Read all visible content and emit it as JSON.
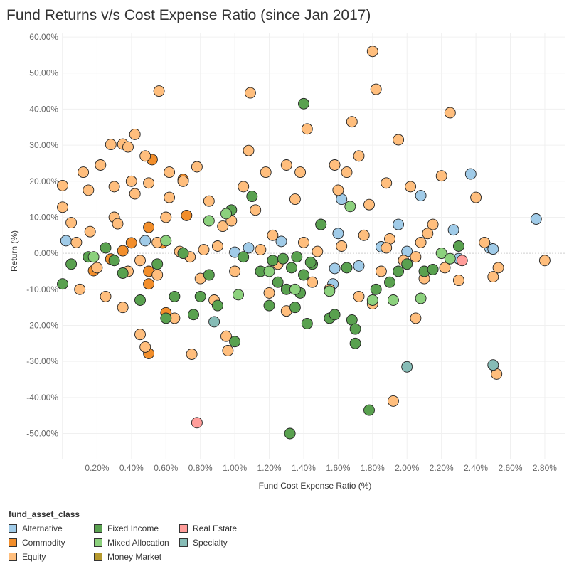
{
  "title": "Fund Returns v/s Cost Expense Ratio (since Jan 2017)",
  "chart_data": {
    "type": "scatter",
    "xlabel": "Fund Cost Expense Ratio (%)",
    "ylabel": "Return (%)",
    "xlim": [
      0.0,
      2.92
    ],
    "ylim": [
      -57,
      61
    ],
    "x_ticks": [
      0.2,
      0.4,
      0.6,
      0.8,
      1.0,
      1.2,
      1.4,
      1.6,
      1.8,
      2.0,
      2.2,
      2.4,
      2.6,
      2.8
    ],
    "x_tick_labels": [
      "0.20%",
      "0.40%",
      "0.60%",
      "0.80%",
      "1.00%",
      "1.20%",
      "1.40%",
      "1.60%",
      "1.80%",
      "2.00%",
      "2.20%",
      "2.40%",
      "2.60%",
      "2.80%"
    ],
    "y_ticks": [
      60,
      50,
      40,
      30,
      20,
      10,
      0,
      -10,
      -20,
      -30,
      -40,
      -50
    ],
    "y_tick_labels": [
      "60.00%",
      "50.00%",
      "40.00%",
      "30.00%",
      "20.00%",
      "10.00%",
      "0.00%",
      "-10.00%",
      "-20.00%",
      "-30.00%",
      "-40.00%",
      "-50.00%"
    ],
    "grid": true,
    "legend_title": "fund_asset_class",
    "legend_position": "bottom-left",
    "series": [
      {
        "name": "Alternative",
        "color": "#a0cbe8",
        "points": [
          [
            0.02,
            3.5
          ],
          [
            0.48,
            3.5
          ],
          [
            1.0,
            0.3
          ],
          [
            1.08,
            1.5
          ],
          [
            1.27,
            3.3
          ],
          [
            1.57,
            -8.5
          ],
          [
            1.58,
            -4.2
          ],
          [
            1.6,
            5.5
          ],
          [
            1.62,
            15.0
          ],
          [
            1.72,
            -3.5
          ],
          [
            1.85,
            1.8
          ],
          [
            1.95,
            8.0
          ],
          [
            2.0,
            0.5
          ],
          [
            2.08,
            16.0
          ],
          [
            2.27,
            6.5
          ],
          [
            2.37,
            22.0
          ],
          [
            2.3,
            -1.5
          ],
          [
            2.48,
            1.5
          ],
          [
            2.5,
            1.2
          ],
          [
            2.75,
            9.5
          ]
        ]
      },
      {
        "name": "Commodity",
        "color": "#f28e2b",
        "points": [
          [
            0.18,
            -4.8
          ],
          [
            0.28,
            -1.6
          ],
          [
            0.35,
            0.7
          ],
          [
            0.4,
            2.9
          ],
          [
            0.5,
            7.2
          ],
          [
            0.5,
            -27.8
          ],
          [
            0.52,
            26.0
          ],
          [
            0.5,
            -8.5
          ],
          [
            0.5,
            -5.0
          ],
          [
            0.6,
            -16.5
          ],
          [
            0.58,
            2.9
          ],
          [
            0.7,
            20.5
          ],
          [
            0.72,
            10.5
          ]
        ]
      },
      {
        "name": "Equity",
        "color": "#ffbe7d",
        "points": [
          [
            0.0,
            18.8
          ],
          [
            0.0,
            12.8
          ],
          [
            0.05,
            8.5
          ],
          [
            0.08,
            3.0
          ],
          [
            0.1,
            -10.0
          ],
          [
            0.12,
            22.5
          ],
          [
            0.15,
            17.5
          ],
          [
            0.16,
            6.0
          ],
          [
            0.2,
            -4.0
          ],
          [
            0.22,
            24.5
          ],
          [
            0.25,
            -12.0
          ],
          [
            0.28,
            30.2
          ],
          [
            0.3,
            18.5
          ],
          [
            0.3,
            10.0
          ],
          [
            0.32,
            8.2
          ],
          [
            0.35,
            -15.0
          ],
          [
            0.35,
            30.3
          ],
          [
            0.38,
            29.5
          ],
          [
            0.38,
            -5.0
          ],
          [
            0.4,
            20.0
          ],
          [
            0.42,
            33.0
          ],
          [
            0.42,
            16.5
          ],
          [
            0.45,
            -2.0
          ],
          [
            0.45,
            -22.5
          ],
          [
            0.48,
            -26.0
          ],
          [
            0.48,
            27.0
          ],
          [
            0.5,
            19.5
          ],
          [
            0.55,
            -6.0
          ],
          [
            0.56,
            45.0
          ],
          [
            0.6,
            10.0
          ],
          [
            0.62,
            22.5
          ],
          [
            0.62,
            15.5
          ],
          [
            0.65,
            -18.0
          ],
          [
            0.7,
            20.0
          ],
          [
            0.75,
            -28.0
          ],
          [
            0.78,
            24.0
          ],
          [
            0.8,
            -7.0
          ],
          [
            0.85,
            14.5
          ],
          [
            0.88,
            -13.0
          ],
          [
            0.9,
            2.0
          ],
          [
            0.93,
            7.5
          ],
          [
            0.95,
            -23.0
          ],
          [
            0.96,
            -27.0
          ],
          [
            0.98,
            9.0
          ],
          [
            1.0,
            -5.0
          ],
          [
            1.05,
            18.5
          ],
          [
            1.08,
            28.5
          ],
          [
            1.09,
            44.5
          ],
          [
            1.12,
            12.0
          ],
          [
            1.18,
            22.5
          ],
          [
            1.2,
            -11.0
          ],
          [
            1.25,
            -3.0
          ],
          [
            1.3,
            24.5
          ],
          [
            1.3,
            -16.0
          ],
          [
            1.35,
            15.0
          ],
          [
            1.38,
            22.5
          ],
          [
            1.4,
            3.0
          ],
          [
            1.42,
            34.5
          ],
          [
            1.45,
            -8.0
          ],
          [
            1.5,
            8.0
          ],
          [
            1.55,
            -10.0
          ],
          [
            1.58,
            24.5
          ],
          [
            1.6,
            17.5
          ],
          [
            1.65,
            22.5
          ],
          [
            1.68,
            36.5
          ],
          [
            1.72,
            27.0
          ],
          [
            1.72,
            -12.0
          ],
          [
            1.78,
            13.5
          ],
          [
            1.8,
            -14.0
          ],
          [
            1.8,
            56.0
          ],
          [
            1.82,
            45.5
          ],
          [
            1.85,
            -5.0
          ],
          [
            1.88,
            19.5
          ],
          [
            1.9,
            4.0
          ],
          [
            1.92,
            -41.0
          ],
          [
            1.95,
            31.5
          ],
          [
            1.98,
            -2.0
          ],
          [
            2.02,
            18.5
          ],
          [
            2.05,
            -18.0
          ],
          [
            2.08,
            3.0
          ],
          [
            2.1,
            -7.0
          ],
          [
            2.15,
            8.0
          ],
          [
            2.2,
            21.5
          ],
          [
            2.22,
            -4.0
          ],
          [
            2.25,
            39.0
          ],
          [
            2.3,
            -7.5
          ],
          [
            2.4,
            15.5
          ],
          [
            2.45,
            3.0
          ],
          [
            2.5,
            -6.5
          ],
          [
            2.52,
            -33.5
          ],
          [
            2.53,
            -4.0
          ],
          [
            2.8,
            -2.0
          ],
          [
            0.55,
            3.0
          ],
          [
            0.68,
            0.5
          ],
          [
            0.74,
            -1.0
          ],
          [
            0.82,
            1.0
          ],
          [
            1.15,
            1.0
          ],
          [
            1.22,
            5.0
          ],
          [
            1.48,
            0.5
          ],
          [
            1.62,
            2.0
          ],
          [
            1.75,
            5.0
          ],
          [
            1.88,
            1.5
          ],
          [
            2.05,
            -1.0
          ],
          [
            2.12,
            5.5
          ]
        ]
      },
      {
        "name": "Fixed Income",
        "color": "#59a14f",
        "points": [
          [
            0.0,
            -8.5
          ],
          [
            0.05,
            -3.0
          ],
          [
            0.15,
            -1.0
          ],
          [
            0.25,
            1.5
          ],
          [
            0.3,
            -2.0
          ],
          [
            0.35,
            -5.5
          ],
          [
            0.45,
            -13.0
          ],
          [
            0.55,
            -3.0
          ],
          [
            0.6,
            -18.0
          ],
          [
            0.65,
            -12.0
          ],
          [
            0.7,
            0.0
          ],
          [
            0.76,
            -17.0
          ],
          [
            0.8,
            -12.0
          ],
          [
            0.85,
            -6.0
          ],
          [
            0.9,
            -14.5
          ],
          [
            1.0,
            -24.5
          ],
          [
            1.05,
            -1.0
          ],
          [
            1.1,
            15.8
          ],
          [
            1.15,
            -5.0
          ],
          [
            1.2,
            -14.5
          ],
          [
            1.25,
            -8.0
          ],
          [
            1.3,
            -10.0
          ],
          [
            1.32,
            -50.0
          ],
          [
            1.35,
            -15.0
          ],
          [
            1.38,
            -11.0
          ],
          [
            1.4,
            41.5
          ],
          [
            1.42,
            -19.5
          ],
          [
            1.45,
            -3.0
          ],
          [
            1.5,
            8.0
          ],
          [
            1.55,
            -18.0
          ],
          [
            1.58,
            -17.0
          ],
          [
            1.65,
            -4.0
          ],
          [
            1.68,
            -18.5
          ],
          [
            1.7,
            -25.0
          ],
          [
            1.7,
            -21.0
          ],
          [
            1.78,
            -43.5
          ],
          [
            1.82,
            -10.0
          ],
          [
            1.9,
            -8.0
          ],
          [
            1.95,
            -5.0
          ],
          [
            2.0,
            -3.0
          ],
          [
            2.1,
            -5.0
          ],
          [
            2.15,
            -4.5
          ],
          [
            2.3,
            2.0
          ],
          [
            0.98,
            12.0
          ],
          [
            1.22,
            -2.0
          ],
          [
            1.28,
            -1.5
          ],
          [
            1.33,
            -4.0
          ],
          [
            1.36,
            -1.0
          ],
          [
            1.4,
            -6.0
          ],
          [
            1.44,
            -2.5
          ]
        ]
      },
      {
        "name": "Mixed Allocation",
        "color": "#8cd17d",
        "points": [
          [
            0.18,
            -1.0
          ],
          [
            0.6,
            3.5
          ],
          [
            0.85,
            9.0
          ],
          [
            0.95,
            11.0
          ],
          [
            1.02,
            -11.5
          ],
          [
            1.2,
            -5.0
          ],
          [
            1.35,
            -10.0
          ],
          [
            1.55,
            -10.5
          ],
          [
            1.67,
            13.0
          ],
          [
            1.8,
            -13.0
          ],
          [
            1.92,
            -13.0
          ],
          [
            2.08,
            -12.5
          ],
          [
            2.2,
            0.0
          ],
          [
            2.25,
            -1.5
          ]
        ]
      },
      {
        "name": "Money Market",
        "color": "#b6992d",
        "points": []
      },
      {
        "name": "Real Estate",
        "color": "#ff9d9a",
        "points": [
          [
            0.78,
            -47.0
          ],
          [
            2.32,
            -2.0
          ]
        ]
      },
      {
        "name": "Specialty",
        "color": "#86bcb6",
        "points": [
          [
            0.88,
            -19.0
          ],
          [
            2.0,
            -31.5
          ],
          [
            2.5,
            -31.0
          ]
        ]
      }
    ]
  }
}
